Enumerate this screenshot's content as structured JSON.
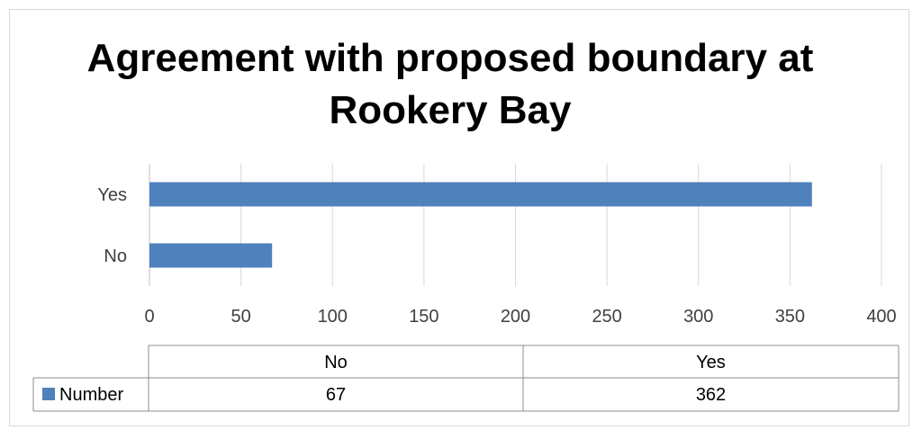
{
  "chart_data": {
    "type": "bar",
    "orientation": "horizontal",
    "title": "Agreement with proposed boundary at Rookery Bay",
    "title_lines": [
      "Agreement with proposed boundary at",
      "Rookery Bay"
    ],
    "categories": [
      "No",
      "Yes"
    ],
    "series": [
      {
        "name": "Number",
        "values": [
          67,
          362
        ],
        "color": "#4f81bd"
      }
    ],
    "xlim": [
      0,
      400
    ],
    "x_ticks": [
      0,
      50,
      100,
      150,
      200,
      250,
      300,
      350,
      400
    ],
    "grid": true,
    "legend": "data-table",
    "data_table": {
      "headers": [
        "No",
        "Yes"
      ],
      "rows": [
        {
          "label": "Number",
          "values": [
            "67",
            "362"
          ]
        }
      ]
    }
  }
}
